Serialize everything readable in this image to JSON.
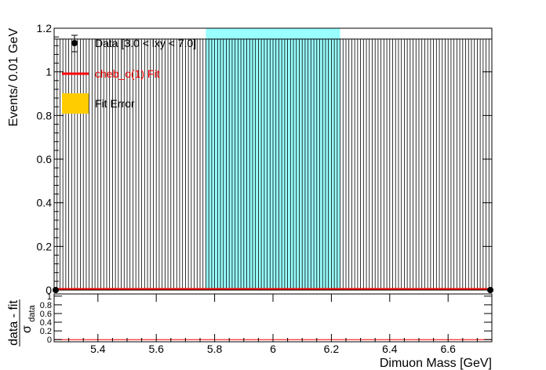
{
  "chart_data": [
    {
      "type": "histogram",
      "panel": "main",
      "ylabel": "Events/ 0.01 GeV",
      "xlim": [
        5.25,
        6.75
      ],
      "ylim": [
        0,
        1.2
      ],
      "y_ticks": [
        0,
        0.2,
        0.4,
        0.6,
        0.8,
        1,
        1.2
      ],
      "y_tick_labels": [
        "0",
        "0.2",
        "0.4",
        "0.6",
        "0.8",
        "1",
        "1.2"
      ],
      "bin_width": 0.01,
      "bin_height": 1.15,
      "excluded_region": [
        5.77,
        6.23
      ],
      "excluded_region_color": "#99ffff",
      "data_color": "#000000",
      "fit_color": "#ff0000",
      "error_band_color": "#ffcc00",
      "legend": [
        {
          "label": "Data [3.0 < lxy < 7.0]",
          "color": "#000000",
          "marker": "point"
        },
        {
          "label": "cheb_o(1) Fit",
          "color": "#ff0000",
          "marker": "line"
        },
        {
          "label": "Fit Error",
          "color": "#ffcc00",
          "marker": "box"
        }
      ]
    },
    {
      "type": "scatter",
      "panel": "pull",
      "ylabel_numerator": "data - fit",
      "ylabel_denominator": "σ",
      "ylabel_denominator_sub": "data",
      "xlabel": "Dimuon Mass [GeV]",
      "xlim": [
        5.25,
        6.75
      ],
      "ylim": [
        -0.05,
        1.05
      ],
      "y_ticks": [
        0,
        0.2,
        0.4,
        0.6,
        0.8,
        1
      ],
      "y_tick_labels": [
        "0",
        "0.2",
        "0.4",
        "0.6",
        "0.8",
        "1"
      ],
      "x_ticks": [
        5.4,
        5.6,
        5.8,
        6,
        6.2,
        6.4,
        6.6
      ],
      "x_tick_labels": [
        "5.4",
        "5.6",
        "5.8",
        "6",
        "6.2",
        "6.4",
        "6.6"
      ],
      "zero_line_color": "#ff0000"
    }
  ]
}
